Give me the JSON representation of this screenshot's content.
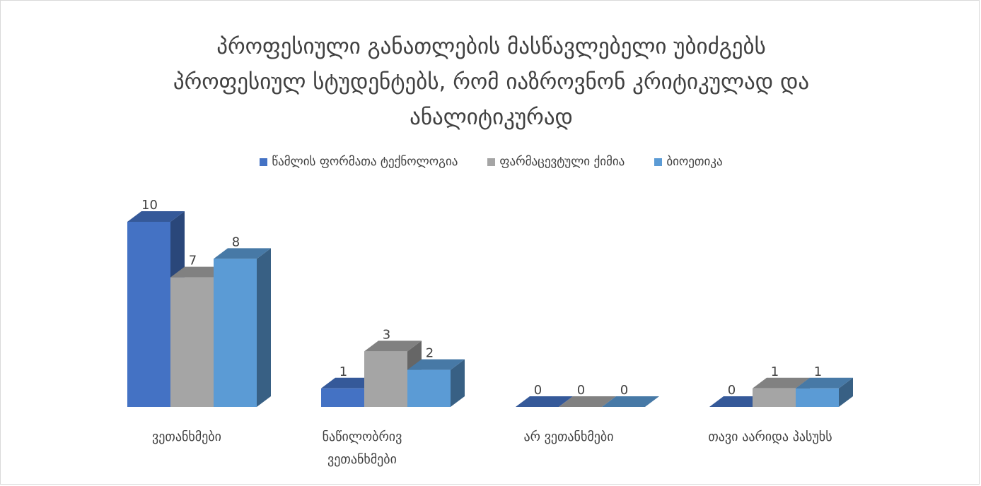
{
  "chart_data": {
    "type": "bar",
    "title": "პროფესიული განათლების მასწავლებელი უბიძგებს პროფესიულ სტუდენტებს, რომ იაზროვნონ კრიტიკულად და ანალიტიკურად",
    "categories": [
      "ვეთანხმები",
      "ნაწილობრივ ვეთანხმები",
      "არ ვეთანხმები",
      "თავი აარიდა პასუხს"
    ],
    "series": [
      {
        "name": "წამლის ფორმათა ტექნოლოგია",
        "values": [
          10,
          1,
          0,
          0
        ],
        "color": "#4472c4"
      },
      {
        "name": "ფარმაცევტული ქიმია",
        "values": [
          7,
          3,
          0,
          1
        ],
        "color": "#a5a5a5"
      },
      {
        "name": "ბიოეთიკა",
        "values": [
          8,
          2,
          0,
          1
        ],
        "color": "#5b9bd5"
      }
    ],
    "ylim": [
      0,
      10
    ],
    "grid": false,
    "legend_position": "top",
    "xlabel": "",
    "ylabel": ""
  }
}
